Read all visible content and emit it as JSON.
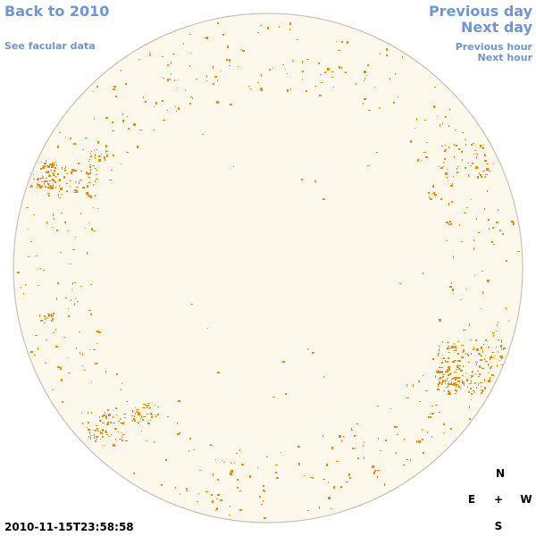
{
  "nav": {
    "back_label": "Back to 2010",
    "facular_label": "See facular data",
    "prev_day_label": "Previous day",
    "next_day_label": "Next day",
    "prev_hour_label": "Previous hour",
    "next_hour_label": "Next hour"
  },
  "image": {
    "disk_fill": "#fdf8ec",
    "disk_stroke": "#bdb7aa",
    "facula_color": "#f08a00",
    "timestamp": "2010-11-15T23:58:58"
  },
  "compass": {
    "north": "N",
    "east": "E",
    "center": "+",
    "west": "W",
    "south": "S"
  }
}
